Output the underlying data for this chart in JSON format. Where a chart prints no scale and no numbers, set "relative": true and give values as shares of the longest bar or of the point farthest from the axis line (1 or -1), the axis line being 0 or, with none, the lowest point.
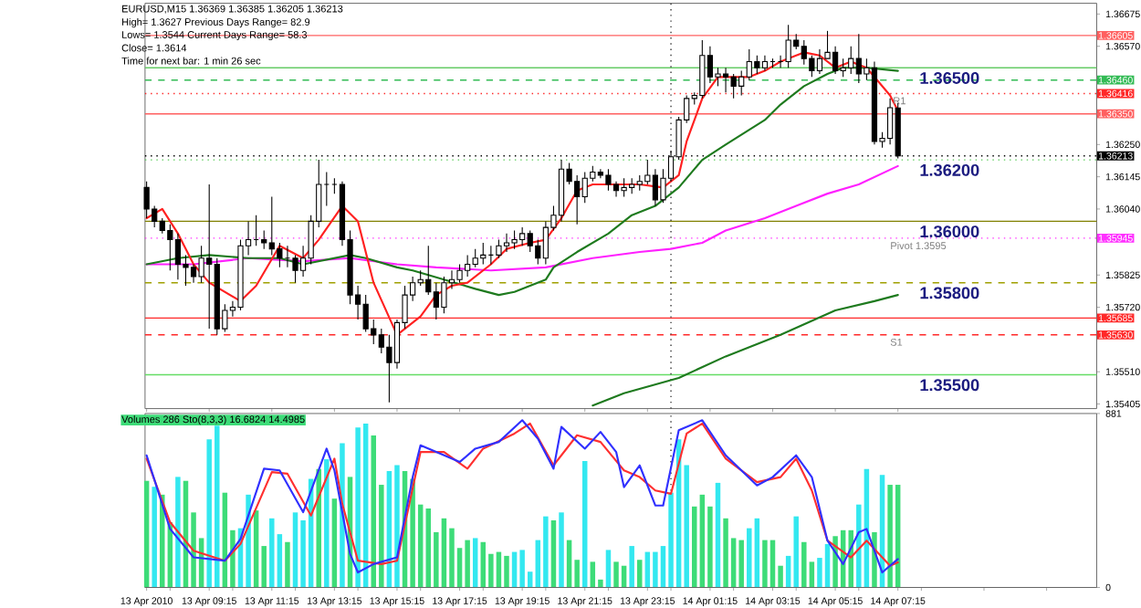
{
  "chart_data": [
    {
      "type": "candlestick",
      "x": [
        "2010-04-13T07:15",
        "2010-04-13T07:30",
        "2010-04-13T07:45",
        "2010-04-13T08:00",
        "2010-04-13T08:15",
        "2010-04-13T08:30",
        "2010-04-13T08:45",
        "2010-04-13T09:00",
        "2010-04-13T09:15",
        "2010-04-13T09:30",
        "2010-04-13T09:45",
        "2010-04-13T10:00",
        "2010-04-13T10:15",
        "2010-04-13T10:30",
        "2010-04-13T10:45",
        "2010-04-13T11:00",
        "2010-04-13T11:15",
        "2010-04-13T11:30",
        "2010-04-13T11:45",
        "2010-04-13T12:00",
        "2010-04-13T12:15",
        "2010-04-13T12:30",
        "2010-04-13T12:45",
        "2010-04-13T13:00",
        "2010-04-13T13:15",
        "2010-04-13T13:30",
        "2010-04-13T13:45",
        "2010-04-13T14:00",
        "2010-04-13T14:15",
        "2010-04-13T14:30",
        "2010-04-13T14:45",
        "2010-04-13T15:00",
        "2010-04-13T15:15",
        "2010-04-13T15:30",
        "2010-04-13T15:45",
        "2010-04-13T16:00",
        "2010-04-13T16:15",
        "2010-04-13T16:30",
        "2010-04-13T16:45",
        "2010-04-13T17:00",
        "2010-04-13T17:15",
        "2010-04-13T17:30",
        "2010-04-13T17:45",
        "2010-04-13T18:00",
        "2010-04-13T18:15",
        "2010-04-13T18:30",
        "2010-04-13T18:45",
        "2010-04-13T19:00",
        "2010-04-13T19:15",
        "2010-04-13T19:30",
        "2010-04-13T19:45",
        "2010-04-13T20:00",
        "2010-04-13T20:15",
        "2010-04-13T20:30",
        "2010-04-13T20:45",
        "2010-04-13T21:00",
        "2010-04-13T21:15",
        "2010-04-13T21:30",
        "2010-04-13T21:45",
        "2010-04-13T22:00",
        "2010-04-13T22:15",
        "2010-04-13T22:30",
        "2010-04-13T22:45",
        "2010-04-13T23:00",
        "2010-04-13T23:15",
        "2010-04-13T23:30",
        "2010-04-13T23:45",
        "2010-04-14T00:00",
        "2010-04-14T00:15",
        "2010-04-14T00:30",
        "2010-04-14T00:45",
        "2010-04-14T01:00",
        "2010-04-14T01:15",
        "2010-04-14T01:30",
        "2010-04-14T01:45",
        "2010-04-14T02:00",
        "2010-04-14T02:15",
        "2010-04-14T02:30",
        "2010-04-14T02:45",
        "2010-04-14T03:00",
        "2010-04-14T03:15",
        "2010-04-14T03:30",
        "2010-04-14T03:45",
        "2010-04-14T04:00",
        "2010-04-14T04:15",
        "2010-04-14T04:30",
        "2010-04-14T04:45",
        "2010-04-14T05:00",
        "2010-04-14T05:15",
        "2010-04-14T05:30",
        "2010-04-14T05:45",
        "2010-04-14T06:00",
        "2010-04-14T06:15",
        "2010-04-14T06:30",
        "2010-04-14T06:45",
        "2010-04-14T07:00",
        "2010-04-14T07:15"
      ],
      "ohlc": [
        [
          1.3611,
          1.3613,
          1.3601,
          1.3604
        ],
        [
          1.3604,
          1.3605,
          1.3598,
          1.36
        ],
        [
          1.36,
          1.3601,
          1.3596,
          1.3597
        ],
        [
          1.3597,
          1.3599,
          1.3584,
          1.3594
        ],
        [
          1.3594,
          1.3596,
          1.3581,
          1.3586
        ],
        [
          1.3586,
          1.3589,
          1.3579,
          1.3585
        ],
        [
          1.3585,
          1.3586,
          1.358,
          1.3582
        ],
        [
          1.3582,
          1.3592,
          1.358,
          1.3588
        ],
        [
          1.3588,
          1.3612,
          1.3565,
          1.3586
        ],
        [
          1.3586,
          1.3588,
          1.3563,
          1.3565
        ],
        [
          1.3565,
          1.3573,
          1.3564,
          1.3571
        ],
        [
          1.3571,
          1.3574,
          1.3569,
          1.3572
        ],
        [
          1.3572,
          1.3594,
          1.3571,
          1.3592
        ],
        [
          1.3592,
          1.36,
          1.3589,
          1.3594
        ],
        [
          1.3594,
          1.3602,
          1.3592,
          1.3594
        ],
        [
          1.3594,
          1.3597,
          1.3591,
          1.3593
        ],
        [
          1.3593,
          1.3608,
          1.3589,
          1.3591
        ],
        [
          1.3591,
          1.3593,
          1.3585,
          1.3588
        ],
        [
          1.3588,
          1.3592,
          1.3585,
          1.3588
        ],
        [
          1.3588,
          1.3589,
          1.358,
          1.3584
        ],
        [
          1.3584,
          1.3592,
          1.3582,
          1.3588
        ],
        [
          1.3588,
          1.3602,
          1.3586,
          1.36
        ],
        [
          1.36,
          1.362,
          1.3598,
          1.3612
        ],
        [
          1.3612,
          1.3616,
          1.3605,
          1.3612
        ],
        [
          1.3612,
          1.3614,
          1.3609,
          1.3612
        ],
        [
          1.3612,
          1.3613,
          1.3592,
          1.3594
        ],
        [
          1.3594,
          1.3597,
          1.3573,
          1.3576
        ],
        [
          1.3576,
          1.3579,
          1.3568,
          1.3573
        ],
        [
          1.3573,
          1.3576,
          1.3564,
          1.3565
        ],
        [
          1.3565,
          1.3568,
          1.356,
          1.3563
        ],
        [
          1.3563,
          1.3565,
          1.3557,
          1.3559
        ],
        [
          1.3559,
          1.3563,
          1.3541,
          1.3554
        ],
        [
          1.3554,
          1.3568,
          1.3552,
          1.3567
        ],
        [
          1.3567,
          1.3579,
          1.3565,
          1.3576
        ],
        [
          1.3576,
          1.3582,
          1.3574,
          1.358
        ],
        [
          1.358,
          1.3584,
          1.3579,
          1.3581
        ],
        [
          1.3581,
          1.3592,
          1.3576,
          1.3577
        ],
        [
          1.3577,
          1.358,
          1.3568,
          1.3572
        ],
        [
          1.3572,
          1.3582,
          1.357,
          1.358
        ],
        [
          1.358,
          1.3584,
          1.3578,
          1.3581
        ],
        [
          1.3581,
          1.3586,
          1.358,
          1.3584
        ],
        [
          1.3584,
          1.3589,
          1.3582,
          1.3586
        ],
        [
          1.3586,
          1.3591,
          1.3585,
          1.3588
        ],
        [
          1.3588,
          1.3593,
          1.3586,
          1.3589
        ],
        [
          1.3589,
          1.3592,
          1.3586,
          1.3589
        ],
        [
          1.3589,
          1.3594,
          1.3588,
          1.3592
        ],
        [
          1.3592,
          1.3596,
          1.359,
          1.3593
        ],
        [
          1.3593,
          1.3597,
          1.3591,
          1.3594
        ],
        [
          1.3594,
          1.3598,
          1.3592,
          1.3596
        ],
        [
          1.3596,
          1.3597,
          1.359,
          1.3592
        ],
        [
          1.3592,
          1.3594,
          1.3586,
          1.3588
        ],
        [
          1.3588,
          1.36,
          1.3586,
          1.3598
        ],
        [
          1.3598,
          1.3605,
          1.3597,
          1.3602
        ],
        [
          1.3602,
          1.362,
          1.36,
          1.3617
        ],
        [
          1.3617,
          1.3619,
          1.3612,
          1.3613
        ],
        [
          1.3613,
          1.3615,
          1.3599,
          1.3608
        ],
        [
          1.3608,
          1.3616,
          1.3606,
          1.3614
        ],
        [
          1.3614,
          1.3618,
          1.3613,
          1.3616
        ],
        [
          1.3616,
          1.3617,
          1.3614,
          1.3615
        ],
        [
          1.3615,
          1.3617,
          1.361,
          1.3612
        ],
        [
          1.3612,
          1.3613,
          1.3608,
          1.361
        ],
        [
          1.361,
          1.3614,
          1.3608,
          1.3611
        ],
        [
          1.3611,
          1.3614,
          1.3609,
          1.3612
        ],
        [
          1.3612,
          1.3615,
          1.361,
          1.3613
        ],
        [
          1.3613,
          1.362,
          1.3612,
          1.3615
        ],
        [
          1.3615,
          1.3617,
          1.3605,
          1.3607
        ],
        [
          1.3607,
          1.3617,
          1.3606,
          1.3614
        ],
        [
          1.3614,
          1.3623,
          1.3613,
          1.3621
        ],
        [
          1.3621,
          1.3634,
          1.362,
          1.3633
        ],
        [
          1.3633,
          1.3641,
          1.3632,
          1.364
        ],
        [
          1.364,
          1.3642,
          1.3638,
          1.3641
        ],
        [
          1.3641,
          1.3659,
          1.364,
          1.3654
        ],
        [
          1.3654,
          1.3657,
          1.3645,
          1.3647
        ],
        [
          1.3647,
          1.365,
          1.3644,
          1.3648
        ],
        [
          1.3648,
          1.365,
          1.3642,
          1.3647
        ],
        [
          1.3647,
          1.3648,
          1.364,
          1.3644
        ],
        [
          1.3644,
          1.3649,
          1.3641,
          1.3647
        ],
        [
          1.3647,
          1.3656,
          1.3646,
          1.3652
        ],
        [
          1.3652,
          1.3654,
          1.3648,
          1.365
        ],
        [
          1.365,
          1.3654,
          1.3649,
          1.3652
        ],
        [
          1.3652,
          1.3653,
          1.365,
          1.3652
        ],
        [
          1.3652,
          1.3654,
          1.365,
          1.3652
        ],
        [
          1.3652,
          1.3664,
          1.365,
          1.3659
        ],
        [
          1.3659,
          1.3661,
          1.3656,
          1.3657
        ],
        [
          1.3657,
          1.3659,
          1.3651,
          1.3653
        ],
        [
          1.3653,
          1.3654,
          1.3647,
          1.3649
        ],
        [
          1.3649,
          1.3656,
          1.3648,
          1.3653
        ],
        [
          1.3653,
          1.3662,
          1.3653,
          1.3655
        ],
        [
          1.3655,
          1.3657,
          1.3648,
          1.3649
        ],
        [
          1.3649,
          1.3653,
          1.3647,
          1.365
        ],
        [
          1.365,
          1.3657,
          1.3648,
          1.3653
        ],
        [
          1.3653,
          1.3661,
          1.3645,
          1.3648
        ],
        [
          1.3648,
          1.3653,
          1.3646,
          1.365
        ],
        [
          1.365,
          1.3652,
          1.3625,
          1.3626
        ],
        [
          1.3626,
          1.3629,
          1.3624,
          1.3627
        ],
        [
          1.3627,
          1.364,
          1.3625,
          1.3637
        ],
        [
          1.36369,
          1.36385,
          1.36205,
          1.36213
        ]
      ],
      "series": [
        {
          "type": "line",
          "color": "#ff20ff",
          "x": [
            "2010-04-13T07:15",
            "2010-04-13T08:45",
            "2010-04-13T10:30",
            "2010-04-13T12:15",
            "2010-04-13T13:45",
            "2010-04-13T15:15",
            "2010-04-13T16:30",
            "2010-04-13T18:15",
            "2010-04-13T20:00",
            "2010-04-13T21:30",
            "2010-04-13T23:00",
            "2010-04-14T00:00",
            "2010-04-14T01:00",
            "2010-04-14T01:45",
            "2010-04-14T03:00",
            "2010-04-14T04:00",
            "2010-04-14T05:00",
            "2010-04-14T06:00",
            "2010-04-14T07:15"
          ],
          "values": [
            1.3586,
            1.3586,
            1.3588,
            1.3587,
            1.3588,
            1.3586,
            1.3585,
            1.3584,
            1.3585,
            1.3588,
            1.359,
            1.3591,
            1.3593,
            1.3597,
            1.3601,
            1.3605,
            1.3609,
            1.3612,
            1.3618
          ]
        },
        {
          "type": "line",
          "color": "#1e7a1e",
          "x": [
            "2010-04-13T07:15",
            "2010-04-13T08:15",
            "2010-04-13T09:15",
            "2010-04-13T10:30",
            "2010-04-13T11:30",
            "2010-04-13T12:15",
            "2010-04-13T13:45",
            "2010-04-13T14:15",
            "2010-04-13T15:15",
            "2010-04-13T15:45",
            "2010-04-13T16:45",
            "2010-04-13T17:45",
            "2010-04-13T18:30",
            "2010-04-13T19:00",
            "2010-04-13T20:00",
            "2010-04-13T20:15",
            "2010-04-13T21:00",
            "2010-04-13T22:00",
            "2010-04-13T22:45",
            "2010-04-13T23:30",
            "2010-04-14T00:15",
            "2010-04-14T01:00",
            "2010-04-14T01:45",
            "2010-04-14T03:00",
            "2010-04-14T03:30",
            "2010-04-14T04:15",
            "2010-04-14T05:00",
            "2010-04-14T05:30",
            "2010-04-14T06:15",
            "2010-04-14T07:15"
          ],
          "values": [
            1.3586,
            1.3588,
            1.3589,
            1.3588,
            1.3588,
            1.3586,
            1.3589,
            1.3588,
            1.3585,
            1.3584,
            1.3581,
            1.3578,
            1.3576,
            1.3577,
            1.3581,
            1.3585,
            1.359,
            1.3596,
            1.3602,
            1.3605,
            1.3611,
            1.362,
            1.3625,
            1.3633,
            1.3638,
            1.3644,
            1.3648,
            1.365,
            1.365,
            1.3649
          ]
        },
        {
          "type": "line",
          "color": "#1e7a1e",
          "x": [
            "2010-04-13T21:30",
            "2010-04-13T22:30",
            "2010-04-14T00:15",
            "2010-04-14T01:45",
            "2010-04-14T03:30",
            "2010-04-14T05:15",
            "2010-04-14T06:30",
            "2010-04-14T07:15"
          ],
          "values": [
            1.354,
            1.3544,
            1.3549,
            1.3556,
            1.3563,
            1.3571,
            1.3574,
            1.3576
          ]
        },
        {
          "type": "line",
          "color": "#ff2020",
          "x": [
            "2010-04-13T07:15",
            "2010-04-13T07:45",
            "2010-04-13T08:15",
            "2010-04-13T08:45",
            "2010-04-13T09:15",
            "2010-04-13T10:15",
            "2010-04-13T10:45",
            "2010-04-13T11:30",
            "2010-04-13T12:15",
            "2010-04-13T12:45",
            "2010-04-13T13:30",
            "2010-04-13T14:00",
            "2010-04-13T14:30",
            "2010-04-13T15:15",
            "2010-04-13T16:00",
            "2010-04-13T16:30",
            "2010-04-13T17:00",
            "2010-04-13T17:30",
            "2010-04-13T18:15",
            "2010-04-13T18:45",
            "2010-04-13T19:30",
            "2010-04-13T20:00",
            "2010-04-13T20:30",
            "2010-04-13T21:00",
            "2010-04-13T21:30",
            "2010-04-13T22:15",
            "2010-04-13T23:00",
            "2010-04-13T23:45",
            "2010-04-14T00:15",
            "2010-04-14T00:30",
            "2010-04-14T01:00",
            "2010-04-14T01:30",
            "2010-04-14T02:00",
            "2010-04-14T02:30",
            "2010-04-14T03:00",
            "2010-04-14T03:30",
            "2010-04-14T04:00",
            "2010-04-14T04:15",
            "2010-04-14T04:45",
            "2010-04-14T05:15",
            "2010-04-14T05:45",
            "2010-04-14T06:15",
            "2010-04-14T06:30",
            "2010-04-14T07:00",
            "2010-04-14T07:15"
          ],
          "values": [
            1.3601,
            1.3604,
            1.3596,
            1.3586,
            1.358,
            1.3574,
            1.3579,
            1.3592,
            1.3588,
            1.3594,
            1.3605,
            1.36,
            1.358,
            1.3563,
            1.3569,
            1.3576,
            1.3579,
            1.358,
            1.3586,
            1.3591,
            1.3593,
            1.3594,
            1.3601,
            1.361,
            1.3612,
            1.3612,
            1.3612,
            1.3611,
            1.3615,
            1.3626,
            1.364,
            1.3647,
            1.3647,
            1.3647,
            1.3649,
            1.3652,
            1.3654,
            1.3655,
            1.3654,
            1.365,
            1.3652,
            1.365,
            1.3647,
            1.3641,
            1.3636
          ]
        }
      ],
      "xlim": [
        "2010-04-13T07:12",
        "2010-04-14T13:36"
      ],
      "ylim": [
        1.3539,
        1.3671
      ],
      "xticks": [
        {
          "value": "2010-04-13T07:15",
          "label": null
        },
        {
          "value": "2010-04-13T09:15",
          "label": null
        },
        {
          "value": "2010-04-13T11:15",
          "label": null
        },
        {
          "value": "2010-04-13T13:15",
          "label": null
        },
        {
          "value": "2010-04-13T15:15",
          "label": null
        },
        {
          "value": "2010-04-13T17:15",
          "label": null
        },
        {
          "value": "2010-04-13T19:15",
          "label": null
        },
        {
          "value": "2010-04-13T21:15",
          "label": null
        },
        {
          "value": "2010-04-13T23:15",
          "label": null
        },
        {
          "value": "2010-04-14T01:15",
          "label": null
        },
        {
          "value": "2010-04-14T03:15",
          "label": null
        },
        {
          "value": "2010-04-14T05:15",
          "label": null
        },
        {
          "value": "2010-04-14T07:15",
          "label": null
        }
      ],
      "yticks": [
        {
          "value": 1.36675,
          "label": "1.36675"
        },
        {
          "value": 1.3657,
          "label": "1.36570"
        },
        {
          "value": 1.3625,
          "label": "1.36250"
        },
        {
          "value": 1.36145,
          "label": "1.36145"
        },
        {
          "value": 1.3604,
          "label": "1.36040"
        },
        {
          "value": 1.35825,
          "label": "1.35825"
        },
        {
          "value": 1.3572,
          "label": "1.35720"
        },
        {
          "value": 1.3551,
          "label": "1.35510"
        },
        {
          "value": 1.35405,
          "label": "1.35405"
        }
      ],
      "tick_labels": "y",
      "ref_lines": [
        {
          "axis": "y",
          "value": 1.36605,
          "label": "1.36605",
          "color": "#ff6060",
          "line_style": "solid"
        },
        {
          "axis": "y",
          "value": 1.365,
          "color": "#66cc66",
          "line_style": "solid"
        },
        {
          "axis": "y",
          "value": 1.3646,
          "label": "1.36460",
          "color": "#33bb55",
          "line_style": "dashed"
        },
        {
          "axis": "y",
          "value": 1.36416,
          "label": "1.36416",
          "color": "#ff2828",
          "line_style": "dotted"
        },
        {
          "axis": "y",
          "value": 1.3635,
          "label": "1.36350",
          "color": "#ff6060",
          "line_style": "solid"
        },
        {
          "axis": "y",
          "value": 1.36213,
          "label": "1.36213",
          "color": "#000000",
          "line_style": "dotted"
        },
        {
          "axis": "y",
          "value": 1.362,
          "color": "#55cc55",
          "line_style": "dotted"
        },
        {
          "axis": "y",
          "value": 1.36,
          "color": "#808000",
          "line_style": "solid"
        },
        {
          "axis": "y",
          "value": 1.35945,
          "label": "1.35945",
          "color": "#ff30ff",
          "line_style": "dotted"
        },
        {
          "axis": "y",
          "value": 1.358,
          "color": "#a0a000",
          "line_style": "dashed"
        },
        {
          "axis": "y",
          "value": 1.35685,
          "label": "1.35685",
          "color": "#ff2828",
          "line_style": "solid"
        },
        {
          "axis": "y",
          "value": 1.3563,
          "label": "1.35630",
          "color": "#ff2828",
          "line_style": "dashed"
        },
        {
          "axis": "y",
          "value": 1.355,
          "color": "#66dd66",
          "line_style": "solid"
        },
        {
          "axis": "x",
          "value": "2010-04-14T00:00",
          "color": "#404040",
          "line_style": "dotted"
        }
      ],
      "annotations": [
        "EURUSD,M15 1.36369 1.36385 1.36205 1.36213",
        "High= 1.3627 Previous Days Range= 82.9",
        "Lows= 1.3544 Current Days Range= 58.3",
        "Close= 1.3614",
        "Time for next bar: 1 min 26 sec",
        {
          "text": "1.36500",
          "x": "2010-04-14T08:54",
          "y": 1.365
        },
        {
          "text": "1.36200",
          "x": "2010-04-14T08:54",
          "y": 1.362
        },
        {
          "text": "1.36000",
          "x": "2010-04-14T08:54",
          "y": 1.36
        },
        {
          "text": "1.35800",
          "x": "2010-04-14T08:54",
          "y": 1.358
        },
        {
          "text": "1.35500",
          "x": "2010-04-14T08:54",
          "y": 1.355
        },
        {
          "text": "Pivot 1.3595",
          "x": "2010-04-14T07:54",
          "y": 1.35945
        },
        {
          "text": "R1",
          "x": "2010-04-14T07:18",
          "y": 1.36416
        },
        {
          "text": "S1",
          "x": "2010-04-14T07:12",
          "y": 1.3563
        }
      ]
    },
    {
      "type": "bar",
      "x": [
        "2010-04-13T07:15",
        "2010-04-13T07:30",
        "2010-04-13T07:45",
        "2010-04-13T08:00",
        "2010-04-13T08:15",
        "2010-04-13T08:30",
        "2010-04-13T08:45",
        "2010-04-13T09:00",
        "2010-04-13T09:15",
        "2010-04-13T09:30",
        "2010-04-13T09:45",
        "2010-04-13T10:00",
        "2010-04-13T10:15",
        "2010-04-13T10:30",
        "2010-04-13T10:45",
        "2010-04-13T11:00",
        "2010-04-13T11:15",
        "2010-04-13T11:30",
        "2010-04-13T11:45",
        "2010-04-13T12:00",
        "2010-04-13T12:15",
        "2010-04-13T12:30",
        "2010-04-13T12:45",
        "2010-04-13T13:00",
        "2010-04-13T13:15",
        "2010-04-13T13:30",
        "2010-04-13T13:45",
        "2010-04-13T14:00",
        "2010-04-13T14:15",
        "2010-04-13T14:30",
        "2010-04-13T14:45",
        "2010-04-13T15:00",
        "2010-04-13T15:15",
        "2010-04-13T15:30",
        "2010-04-13T15:45",
        "2010-04-13T16:00",
        "2010-04-13T16:15",
        "2010-04-13T16:30",
        "2010-04-13T16:45",
        "2010-04-13T17:00",
        "2010-04-13T17:15",
        "2010-04-13T17:30",
        "2010-04-13T17:45",
        "2010-04-13T18:00",
        "2010-04-13T18:15",
        "2010-04-13T18:30",
        "2010-04-13T18:45",
        "2010-04-13T19:00",
        "2010-04-13T19:15",
        "2010-04-13T19:30",
        "2010-04-13T19:45",
        "2010-04-13T20:00",
        "2010-04-13T20:15",
        "2010-04-13T20:30",
        "2010-04-13T20:45",
        "2010-04-13T21:00",
        "2010-04-13T21:15",
        "2010-04-13T21:30",
        "2010-04-13T21:45",
        "2010-04-13T22:00",
        "2010-04-13T22:15",
        "2010-04-13T22:30",
        "2010-04-13T22:45",
        "2010-04-13T23:00",
        "2010-04-13T23:15",
        "2010-04-13T23:30",
        "2010-04-13T23:45",
        "2010-04-14T00:00",
        "2010-04-14T00:15",
        "2010-04-14T00:30",
        "2010-04-14T00:45",
        "2010-04-14T01:00",
        "2010-04-14T01:15",
        "2010-04-14T01:30",
        "2010-04-14T01:45",
        "2010-04-14T02:00",
        "2010-04-14T02:15",
        "2010-04-14T02:30",
        "2010-04-14T02:45",
        "2010-04-14T03:00",
        "2010-04-14T03:15",
        "2010-04-14T03:30",
        "2010-04-14T03:45",
        "2010-04-14T04:00",
        "2010-04-14T04:15",
        "2010-04-14T04:30",
        "2010-04-14T04:45",
        "2010-04-14T05:00",
        "2010-04-14T05:15",
        "2010-04-14T05:30",
        "2010-04-14T05:45",
        "2010-04-14T06:00",
        "2010-04-14T06:15",
        "2010-04-14T06:30",
        "2010-04-14T06:45",
        "2010-04-14T07:00",
        "2010-04-14T07:15"
      ],
      "series": [
        {
          "type": "bar",
          "values": [
            540,
            510,
            470,
            330,
            560,
            540,
            380,
            250,
            750,
            820,
            480,
            290,
            300,
            470,
            390,
            210,
            350,
            270,
            230,
            380,
            340,
            550,
            600,
            650,
            450,
            730,
            560,
            810,
            830,
            770,
            520,
            590,
            620,
            590,
            550,
            420,
            400,
            280,
            350,
            300,
            200,
            240,
            250,
            230,
            170,
            180,
            160,
            180,
            190,
            80,
            240,
            360,
            340,
            380,
            240,
            140,
            640,
            130,
            40,
            190,
            130,
            110,
            210,
            140,
            180,
            180,
            210,
            480,
            750,
            620,
            410,
            470,
            410,
            530,
            350,
            250,
            240,
            300,
            350,
            240,
            240,
            110,
            160,
            360,
            230,
            130,
            150,
            220,
            260,
            290,
            290,
            420,
            600,
            280,
            570,
            520,
            520
          ],
          "colors": [
            "#3ddc78",
            "#33e8f0",
            "#3ddc78",
            "#3ddc78",
            "#33e8f0",
            "#3ddc78",
            "#3ddc78",
            "#3ddc78",
            "#33e8f0",
            "#33e8f0",
            "#3ddc78",
            "#3ddc78",
            "#33e8f0",
            "#33e8f0",
            "#3ddc78",
            "#3ddc78",
            "#33e8f0",
            "#33e8f0",
            "#3ddc78",
            "#33e8f0",
            "#33e8f0",
            "#33e8f0",
            "#3ddc78",
            "#33e8f0",
            "#3ddc78",
            "#33e8f0",
            "#3ddc78",
            "#33e8f0",
            "#33e8f0",
            "#3ddc78",
            "#3ddc78",
            "#33e8f0",
            "#33e8f0",
            "#3ddc78",
            "#3ddc78",
            "#3ddc78",
            "#3ddc78",
            "#3ddc78",
            "#3ddc78",
            "#3ddc78",
            "#3ddc78",
            "#3ddc78",
            "#33e8f0",
            "#3ddc78",
            "#3ddc78",
            "#3ddc78",
            "#3ddc78",
            "#33e8f0",
            "#33e8f0",
            "#33e8f0",
            "#33e8f0",
            "#33e8f0",
            "#3ddc78",
            "#33e8f0",
            "#3ddc78",
            "#3ddc78",
            "#33e8f0",
            "#3ddc78",
            "#3ddc78",
            "#33e8f0",
            "#3ddc78",
            "#3ddc78",
            "#33e8f0",
            "#3ddc78",
            "#33e8f0",
            "#33e8f0",
            "#33e8f0",
            "#33e8f0",
            "#33e8f0",
            "#33e8f0",
            "#3ddc78",
            "#3ddc78",
            "#3ddc78",
            "#33e8f0",
            "#3ddc78",
            "#3ddc78",
            "#3ddc78",
            "#33e8f0",
            "#33e8f0",
            "#3ddc78",
            "#3ddc78",
            "#3ddc78",
            "#33e8f0",
            "#33e8f0",
            "#3ddc78",
            "#3ddc78",
            "#33e8f0",
            "#33e8f0",
            "#3ddc78",
            "#3ddc78",
            "#3ddc78",
            "#33e8f0",
            "#33e8f0",
            "#3ddc78",
            "#33e8f0",
            "#3ddc78",
            "#3ddc78"
          ]
        }
      ],
      "xlim": [
        "2010-04-13T07:12",
        "2010-04-14T13:36"
      ],
      "ylim": [
        0,
        881
      ],
      "xticks": [
        {
          "value": "2010-04-13T07:15",
          "label": "13 Apr 2010"
        },
        {
          "value": "2010-04-13T09:15",
          "label": "13 Apr 09:15"
        },
        {
          "value": "2010-04-13T11:15",
          "label": "13 Apr 11:15"
        },
        {
          "value": "2010-04-13T13:15",
          "label": "13 Apr 13:15"
        },
        {
          "value": "2010-04-13T15:15",
          "label": "13 Apr 15:15"
        },
        {
          "value": "2010-04-13T17:15",
          "label": "13 Apr 17:15"
        },
        {
          "value": "2010-04-13T19:15",
          "label": "13 Apr 19:15"
        },
        {
          "value": "2010-04-13T21:15",
          "label": "13 Apr 21:15"
        },
        {
          "value": "2010-04-13T23:15",
          "label": "13 Apr 23:15"
        },
        {
          "value": "2010-04-14T01:15",
          "label": "14 Apr 01:15"
        },
        {
          "value": "2010-04-14T03:15",
          "label": "14 Apr 03:15"
        },
        {
          "value": "2010-04-14T05:15",
          "label": "14 Apr 05:15"
        },
        {
          "value": "2010-04-14T07:15",
          "label": "14 Apr 07:15"
        }
      ],
      "yticks": [
        0,
        881
      ],
      "ref_lines": [
        {
          "axis": "x",
          "value": "2010-04-14T00:00",
          "color": "#404040",
          "line_style": "dotted"
        }
      ],
      "annotations": [
        "Volumes 286 Sto(8,3,3) 16.6824 14.4985"
      ]
    },
    {
      "type": "line",
      "relative": true,
      "xlim": [
        "2010-04-13T07:12",
        "2010-04-14T13:36"
      ],
      "series": [
        {
          "type": "line",
          "color": "#ff3030",
          "x": [
            "2010-04-13T07:15",
            "2010-04-13T08:00",
            "2010-04-13T08:45",
            "2010-04-13T09:45",
            "2010-04-13T10:15",
            "2010-04-13T11:15",
            "2010-04-13T11:45",
            "2010-04-13T12:30",
            "2010-04-13T13:15",
            "2010-04-13T13:30",
            "2010-04-13T14:00",
            "2010-04-13T14:45",
            "2010-04-13T15:15",
            "2010-04-13T16:00",
            "2010-04-13T16:45",
            "2010-04-13T17:30",
            "2010-04-13T18:00",
            "2010-04-13T19:00",
            "2010-04-13T19:30",
            "2010-04-13T20:15",
            "2010-04-13T21:00",
            "2010-04-13T21:45",
            "2010-04-13T22:30",
            "2010-04-13T23:00",
            "2010-04-13T23:30",
            "2010-04-14T00:00",
            "2010-04-14T00:30",
            "2010-04-14T01:00",
            "2010-04-14T01:45",
            "2010-04-14T02:45",
            "2010-04-14T03:30",
            "2010-04-14T04:00",
            "2010-04-14T04:30",
            "2010-04-14T05:00",
            "2010-04-14T05:45",
            "2010-04-14T06:15",
            "2010-04-14T07:00",
            "2010-04-14T07:15"
          ],
          "values": [
            0.77,
            0.39,
            0.22,
            0.16,
            0.26,
            0.69,
            0.68,
            0.43,
            0.77,
            0.5,
            0.16,
            0.14,
            0.16,
            0.81,
            0.81,
            0.71,
            0.83,
            0.92,
            0.98,
            0.73,
            0.91,
            0.87,
            0.7,
            0.66,
            0.58,
            0.56,
            0.92,
            0.98,
            0.77,
            0.63,
            0.66,
            0.77,
            0.58,
            0.28,
            0.18,
            0.28,
            0.13,
            0.15
          ]
        },
        {
          "type": "line",
          "color": "#3030ff",
          "x": [
            "2010-04-13T07:15",
            "2010-04-13T08:00",
            "2010-04-13T08:45",
            "2010-04-13T09:45",
            "2010-04-13T10:15",
            "2010-04-13T11:00",
            "2010-04-13T11:30",
            "2010-04-13T12:15",
            "2010-04-13T13:00",
            "2010-04-13T13:15",
            "2010-04-13T13:45",
            "2010-04-13T14:00",
            "2010-04-13T14:30",
            "2010-04-13T15:15",
            "2010-04-13T15:45",
            "2010-04-13T16:00",
            "2010-04-13T16:30",
            "2010-04-13T17:15",
            "2010-04-13T17:45",
            "2010-04-13T18:30",
            "2010-04-13T19:15",
            "2010-04-13T19:45",
            "2010-04-13T20:15",
            "2010-04-13T20:30",
            "2010-04-13T21:15",
            "2010-04-13T21:45",
            "2010-04-13T22:15",
            "2010-04-13T22:30",
            "2010-04-13T23:00",
            "2010-04-13T23:30",
            "2010-04-13T23:45",
            "2010-04-14T00:15",
            "2010-04-14T01:00",
            "2010-04-14T01:45",
            "2010-04-14T02:45",
            "2010-04-14T03:15",
            "2010-04-14T04:00",
            "2010-04-14T04:30",
            "2010-04-14T05:00",
            "2010-04-14T05:30",
            "2010-04-14T06:00",
            "2010-04-14T06:15",
            "2010-04-14T06:45",
            "2010-04-14T07:15"
          ],
          "values": [
            0.79,
            0.35,
            0.18,
            0.16,
            0.29,
            0.71,
            0.7,
            0.45,
            0.83,
            0.7,
            0.2,
            0.09,
            0.14,
            0.18,
            0.66,
            0.85,
            0.81,
            0.75,
            0.83,
            0.87,
            1,
            0.89,
            0.71,
            0.96,
            0.83,
            0.93,
            0.81,
            0.6,
            0.73,
            0.49,
            0.49,
            0.94,
            1,
            0.79,
            0.61,
            0.66,
            0.79,
            0.66,
            0.28,
            0.14,
            0.33,
            0.35,
            0.09,
            0.17
          ]
        }
      ]
    }
  ]
}
